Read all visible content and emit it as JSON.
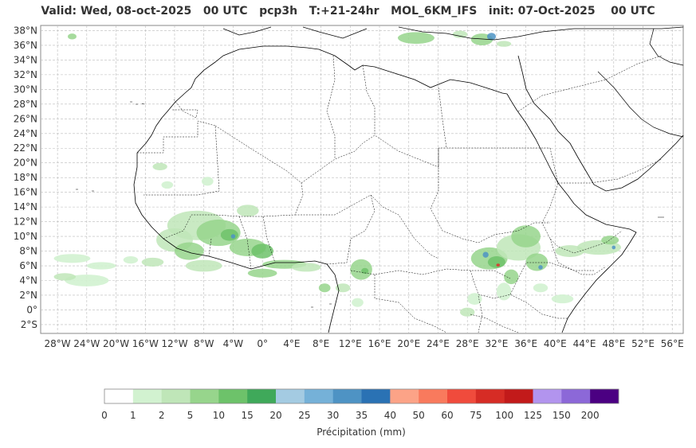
{
  "title": "Valid: Wed, 08-oct-2025   00 UTC   pcp3h   T:+21-24hr   MOL_6KM_IFS   init: 07-Oct-2025    00 UTC",
  "lat_labels": [
    "38°N",
    "36°N",
    "34°N",
    "32°N",
    "30°N",
    "28°N",
    "26°N",
    "24°N",
    "22°N",
    "20°N",
    "18°N",
    "16°N",
    "14°N",
    "12°N",
    "10°N",
    "8°N",
    "6°N",
    "4°N",
    "2°N",
    "0°",
    "2°S"
  ],
  "lat_values": [
    38,
    36,
    34,
    32,
    30,
    28,
    26,
    24,
    22,
    20,
    18,
    16,
    14,
    12,
    10,
    8,
    6,
    4,
    2,
    0,
    -2
  ],
  "lon_labels": [
    "28°W",
    "24°W",
    "20°W",
    "16°W",
    "12°W",
    "8°W",
    "4°W",
    "0°",
    "4°E",
    "8°E",
    "12°E",
    "16°E",
    "20°E",
    "24°E",
    "28°E",
    "32°E",
    "36°E",
    "40°E",
    "44°E",
    "48°E",
    "52°E",
    "56°E"
  ],
  "lon_values": [
    -28,
    -24,
    -20,
    -16,
    -12,
    -8,
    -4,
    0,
    4,
    8,
    12,
    16,
    20,
    24,
    28,
    32,
    36,
    40,
    44,
    48,
    52,
    56
  ],
  "extent": {
    "lon_min": -30.3,
    "lon_max": 57.5,
    "lat_min": -3.2,
    "lat_max": 38.7
  },
  "colorbar": {
    "label": "Précipitation (mm)",
    "ticks": [
      "0",
      "1",
      "2",
      "5",
      "10",
      "15",
      "20",
      "25",
      "30",
      "35",
      "40",
      "50",
      "60",
      "75",
      "100",
      "125",
      "150",
      "200"
    ],
    "colors": [
      "#ffffff",
      "#d2f2d0",
      "#bfe6b8",
      "#97d58c",
      "#6dc26a",
      "#3fa95a",
      "#a4cbe2",
      "#75b1d8",
      "#4e93c4",
      "#2a72b4",
      "#fca387",
      "#f97a5d",
      "#f04b3c",
      "#d62c25",
      "#c21a1a",
      "#b294ee",
      "#8c68d8",
      "#4b0082"
    ]
  },
  "precip_colors": {
    "light": "#d2f2d0",
    "low": "#bfe6b8",
    "mid": "#97d58c",
    "high": "#6dc26a",
    "very_high": "#3fa95a",
    "blue": "#4e93c4",
    "red": "#e0302a"
  }
}
